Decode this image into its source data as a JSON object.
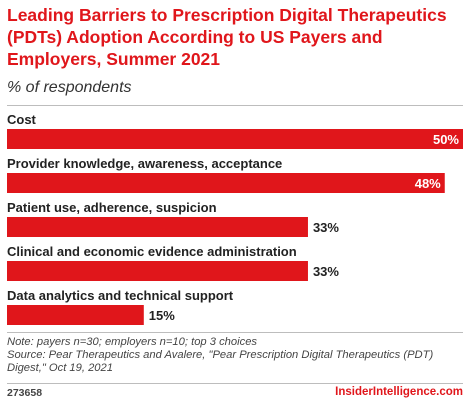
{
  "header": {
    "title": "Leading Barriers to Prescription Digital Therapeutics (PDTs) Adoption According to US Payers and Employers, Summer 2021",
    "subtitle": "% of respondents"
  },
  "chart_data": {
    "type": "bar",
    "orientation": "horizontal",
    "categories": [
      "Cost",
      "Provider knowledge, awareness, acceptance",
      "Patient use, adherence, suspicion",
      "Clinical and economic evidence administration",
      "Data analytics and technical support"
    ],
    "values": [
      50,
      48,
      33,
      33,
      15
    ],
    "value_labels": [
      "50%",
      "48%",
      "33%",
      "33%",
      "15%"
    ],
    "title": "Leading Barriers to Prescription Digital Therapeutics (PDTs) Adoption According to US Payers and Employers, Summer 2021",
    "subtitle": "% of respondents",
    "xlim": [
      0,
      50
    ],
    "grid": false,
    "colors": {
      "bar": "#e0161b"
    }
  },
  "footer": {
    "note": "Note: payers n=30; employers n=10; top 3 choices",
    "source": "Source: Pear Therapeutics and Avalere, \"Pear Prescription Digital Therapeutics (PDT) Digest,\" Oct 19, 2021",
    "chart_id": "273658",
    "brand": "InsiderIntelligence.com"
  }
}
